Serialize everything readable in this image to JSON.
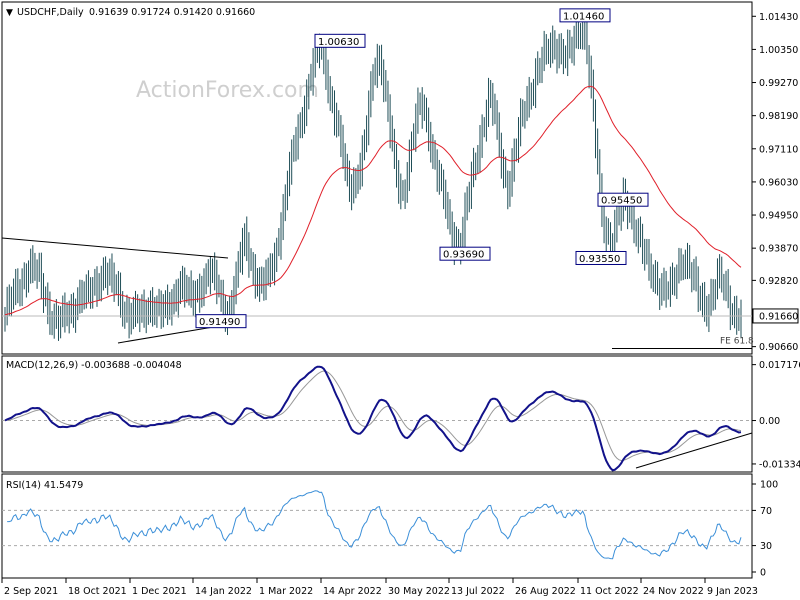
{
  "header": {
    "symbol": "USDCHF,Daily",
    "ohlc": "0.91639 0.91724 0.91420 0.91660"
  },
  "watermark": "ActionForex.com",
  "colors": {
    "candle": "#1f4e57",
    "ma": "#e0202a",
    "macd": "#12128a",
    "signal": "#999999",
    "rsi": "#3b8fd8",
    "label_border": "#000080",
    "grid_dash": "#aaaaaa"
  },
  "chart_data": [
    {
      "type": "candlestick",
      "title": "USDCHF,Daily",
      "y_ticks": [
        "1.01430",
        "1.00350",
        "0.99270",
        "0.98190",
        "0.97110",
        "0.96030",
        "0.94950",
        "0.93870",
        "0.92820",
        "0.91660",
        "0.90660"
      ],
      "ylim": [
        0.9055,
        1.017
      ],
      "current_price": "0.91660",
      "moving_average": "red line (55 EMA)",
      "annotations": [
        {
          "label": "1.00630",
          "price": 1.0063
        },
        {
          "label": "1.01460",
          "price": 1.0146
        },
        {
          "label": "0.93690",
          "price": 0.9369
        },
        {
          "label": "0.95450",
          "price": 0.9545
        },
        {
          "label": "0.93550",
          "price": 0.9355
        },
        {
          "label": "0.91490",
          "price": 0.9149
        },
        {
          "label": "FE 61.8",
          "price": 0.9066
        }
      ],
      "close_series": [
        0.917,
        0.921,
        0.925,
        0.929,
        0.933,
        0.931,
        0.928,
        0.922,
        0.917,
        0.914,
        0.915,
        0.918,
        0.921,
        0.924,
        0.922,
        0.925,
        0.929,
        0.932,
        0.928,
        0.925,
        0.921,
        0.918,
        0.917,
        0.916,
        0.918,
        0.922,
        0.919,
        0.917,
        0.919,
        0.924,
        0.928,
        0.924,
        0.921,
        0.925,
        0.929,
        0.931,
        0.927,
        0.922,
        0.918,
        0.923,
        0.932,
        0.942,
        0.936,
        0.929,
        0.925,
        0.929,
        0.935,
        0.945,
        0.955,
        0.966,
        0.976,
        0.984,
        0.992,
        0.999,
        1.004,
        0.997,
        0.986,
        0.977,
        0.966,
        0.959,
        0.962,
        0.966,
        0.978,
        0.996,
        1.003,
        0.992,
        0.975,
        0.962,
        0.956,
        0.966,
        0.976,
        0.985,
        0.983,
        0.973,
        0.963,
        0.955,
        0.948,
        0.942,
        0.94,
        0.951,
        0.962,
        0.972,
        0.981,
        0.988,
        0.979,
        0.968,
        0.959,
        0.966,
        0.976,
        0.985,
        0.991,
        0.996,
        0.999,
        1.003,
        1.006,
        1.004,
        1.0,
        1.003,
        1.01,
        1.013,
        0.997,
        0.975,
        0.952,
        0.944,
        0.942,
        0.948,
        0.954,
        0.952,
        0.946,
        0.939,
        0.932,
        0.93,
        0.928,
        0.925,
        0.924,
        0.93,
        0.937,
        0.934,
        0.927,
        0.921,
        0.92,
        0.924,
        0.929,
        0.926,
        0.921,
        0.918,
        0.917
      ],
      "macd": {
        "label": "MACD(12,26,9) -0.003688 -0.004048",
        "y_ticks": [
          "0.017176",
          "0.00",
          "-0.01334"
        ],
        "ylim": [
          -0.0152,
          0.0186
        ]
      },
      "rsi": {
        "label": "RSI(14) 41.5479",
        "y_ticks": [
          "100",
          "70",
          "30",
          "0"
        ],
        "ylim": [
          0,
          100
        ],
        "levels": [
          70,
          30
        ]
      },
      "x_ticks": [
        "2 Sep 2021",
        "18 Oct 2021",
        "1 Dec 2021",
        "14 Jan 2022",
        "1 Mar 2022",
        "14 Apr 2022",
        "30 May 2022",
        "13 Jul 2022",
        "26 Aug 2022",
        "11 Oct 2022",
        "24 Nov 2022",
        "9 Jan 2023"
      ]
    }
  ]
}
